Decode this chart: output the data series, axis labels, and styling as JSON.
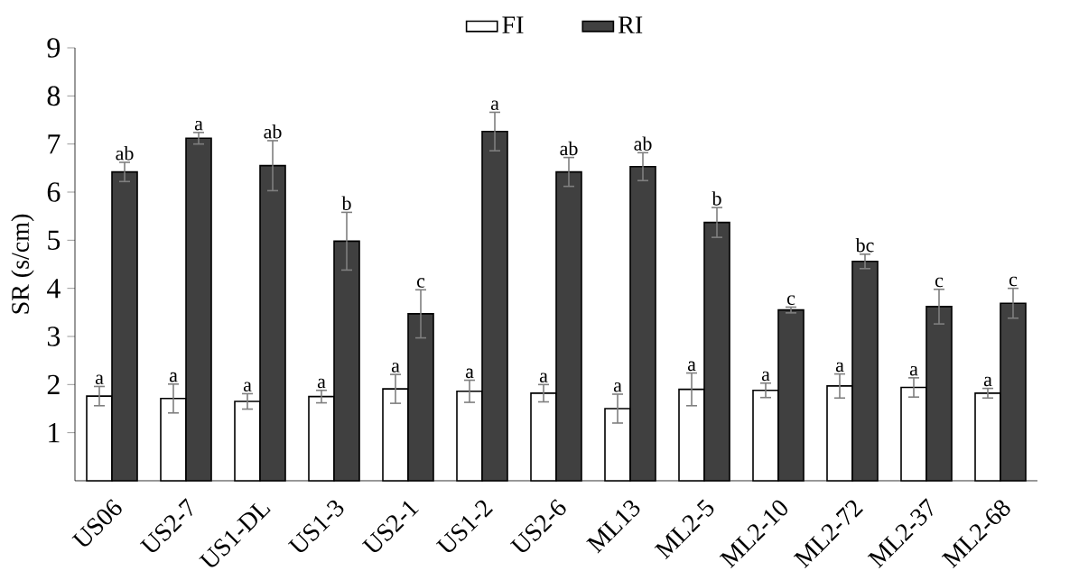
{
  "chart_data": {
    "type": "bar",
    "ylabel": "SR (s/cm)",
    "categories": [
      "US06",
      "US2-7",
      "US1-DL",
      "US1-3",
      "US2-1",
      "US1-2",
      "US2-6",
      "ML13",
      "ML2-5",
      "ML2-10",
      "ML2-72",
      "ML2-37",
      "ML2-68"
    ],
    "series": [
      {
        "name": "FI",
        "color": "#ffffff",
        "values": [
          1.76,
          1.71,
          1.65,
          1.75,
          1.91,
          1.86,
          1.82,
          1.5,
          1.9,
          1.88,
          1.97,
          1.94,
          1.82
        ],
        "errors": [
          0.2,
          0.3,
          0.16,
          0.13,
          0.3,
          0.23,
          0.18,
          0.3,
          0.34,
          0.15,
          0.25,
          0.2,
          0.1
        ],
        "value_labels": [
          "a",
          "a",
          "a",
          "a",
          "a",
          "a",
          "a",
          "a",
          "a",
          "a",
          "a",
          "a",
          "a"
        ]
      },
      {
        "name": "RI",
        "color": "#404040",
        "values": [
          6.42,
          7.12,
          6.55,
          4.98,
          3.47,
          7.26,
          6.42,
          6.53,
          5.37,
          3.55,
          4.56,
          3.62,
          3.69
        ],
        "errors": [
          0.2,
          0.12,
          0.52,
          0.6,
          0.5,
          0.4,
          0.3,
          0.29,
          0.31,
          0.06,
          0.15,
          0.36,
          0.31
        ],
        "value_labels": [
          "ab",
          "a",
          "ab",
          "b",
          "c",
          "a",
          "ab",
          "ab",
          "b",
          "c",
          "bc",
          "c",
          "c"
        ]
      }
    ],
    "ylim": [
      0,
      9
    ],
    "yticks": [
      1,
      2,
      3,
      4,
      5,
      6,
      7,
      8,
      9
    ],
    "grid": false,
    "legend": "top"
  }
}
